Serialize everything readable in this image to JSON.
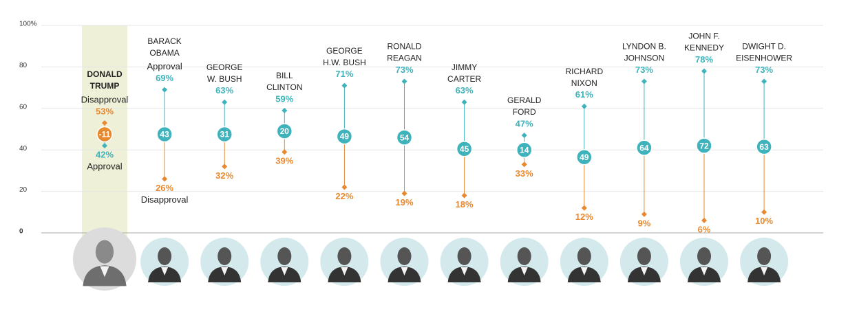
{
  "chart_data": {
    "type": "dumbbell",
    "categories": [
      [
        "DONALD",
        "TRUMP"
      ],
      [
        "BARACK",
        "OBAMA"
      ],
      [
        "GEORGE",
        "W. BUSH"
      ],
      [
        "BILL",
        "CLINTON"
      ],
      [
        "GEORGE",
        "H.W. BUSH"
      ],
      [
        "RONALD",
        "REAGAN"
      ],
      [
        "JIMMY",
        "CARTER"
      ],
      [
        "GERALD",
        "FORD"
      ],
      [
        "RICHARD",
        "NIXON"
      ],
      [
        "LYNDON B.",
        "JOHNSON"
      ],
      [
        "JOHN F.",
        "KENNEDY"
      ],
      [
        "DWIGHT D.",
        "EISENHOWER"
      ]
    ],
    "series": [
      {
        "name": "Approval",
        "color": "#3fb3bb",
        "values": [
          42,
          69,
          63,
          59,
          71,
          73,
          63,
          47,
          61,
          73,
          78,
          73
        ],
        "value_labels": [
          "42%",
          "69%",
          "63%",
          "59%",
          "71%",
          "73%",
          "63%",
          "47%",
          "61%",
          "73%",
          "78%",
          "73%"
        ]
      },
      {
        "name": "Disapproval",
        "color": "#e8892f",
        "values": [
          53,
          26,
          32,
          39,
          22,
          19,
          18,
          33,
          12,
          9,
          6,
          10
        ],
        "value_labels": [
          "53%",
          "26%",
          "32%",
          "39%",
          "22%",
          "19%",
          "18%",
          "33%",
          "12%",
          "9%",
          "6%",
          "10%"
        ]
      }
    ],
    "net": [
      -11,
      43,
      31,
      20,
      49,
      54,
      45,
      14,
      49,
      64,
      72,
      63
    ],
    "ylim": [
      0,
      100
    ],
    "yticks": [
      0,
      20,
      40,
      60,
      80,
      {
        "value": 100,
        "label": "100%"
      }
    ],
    "grid": true
  }
}
